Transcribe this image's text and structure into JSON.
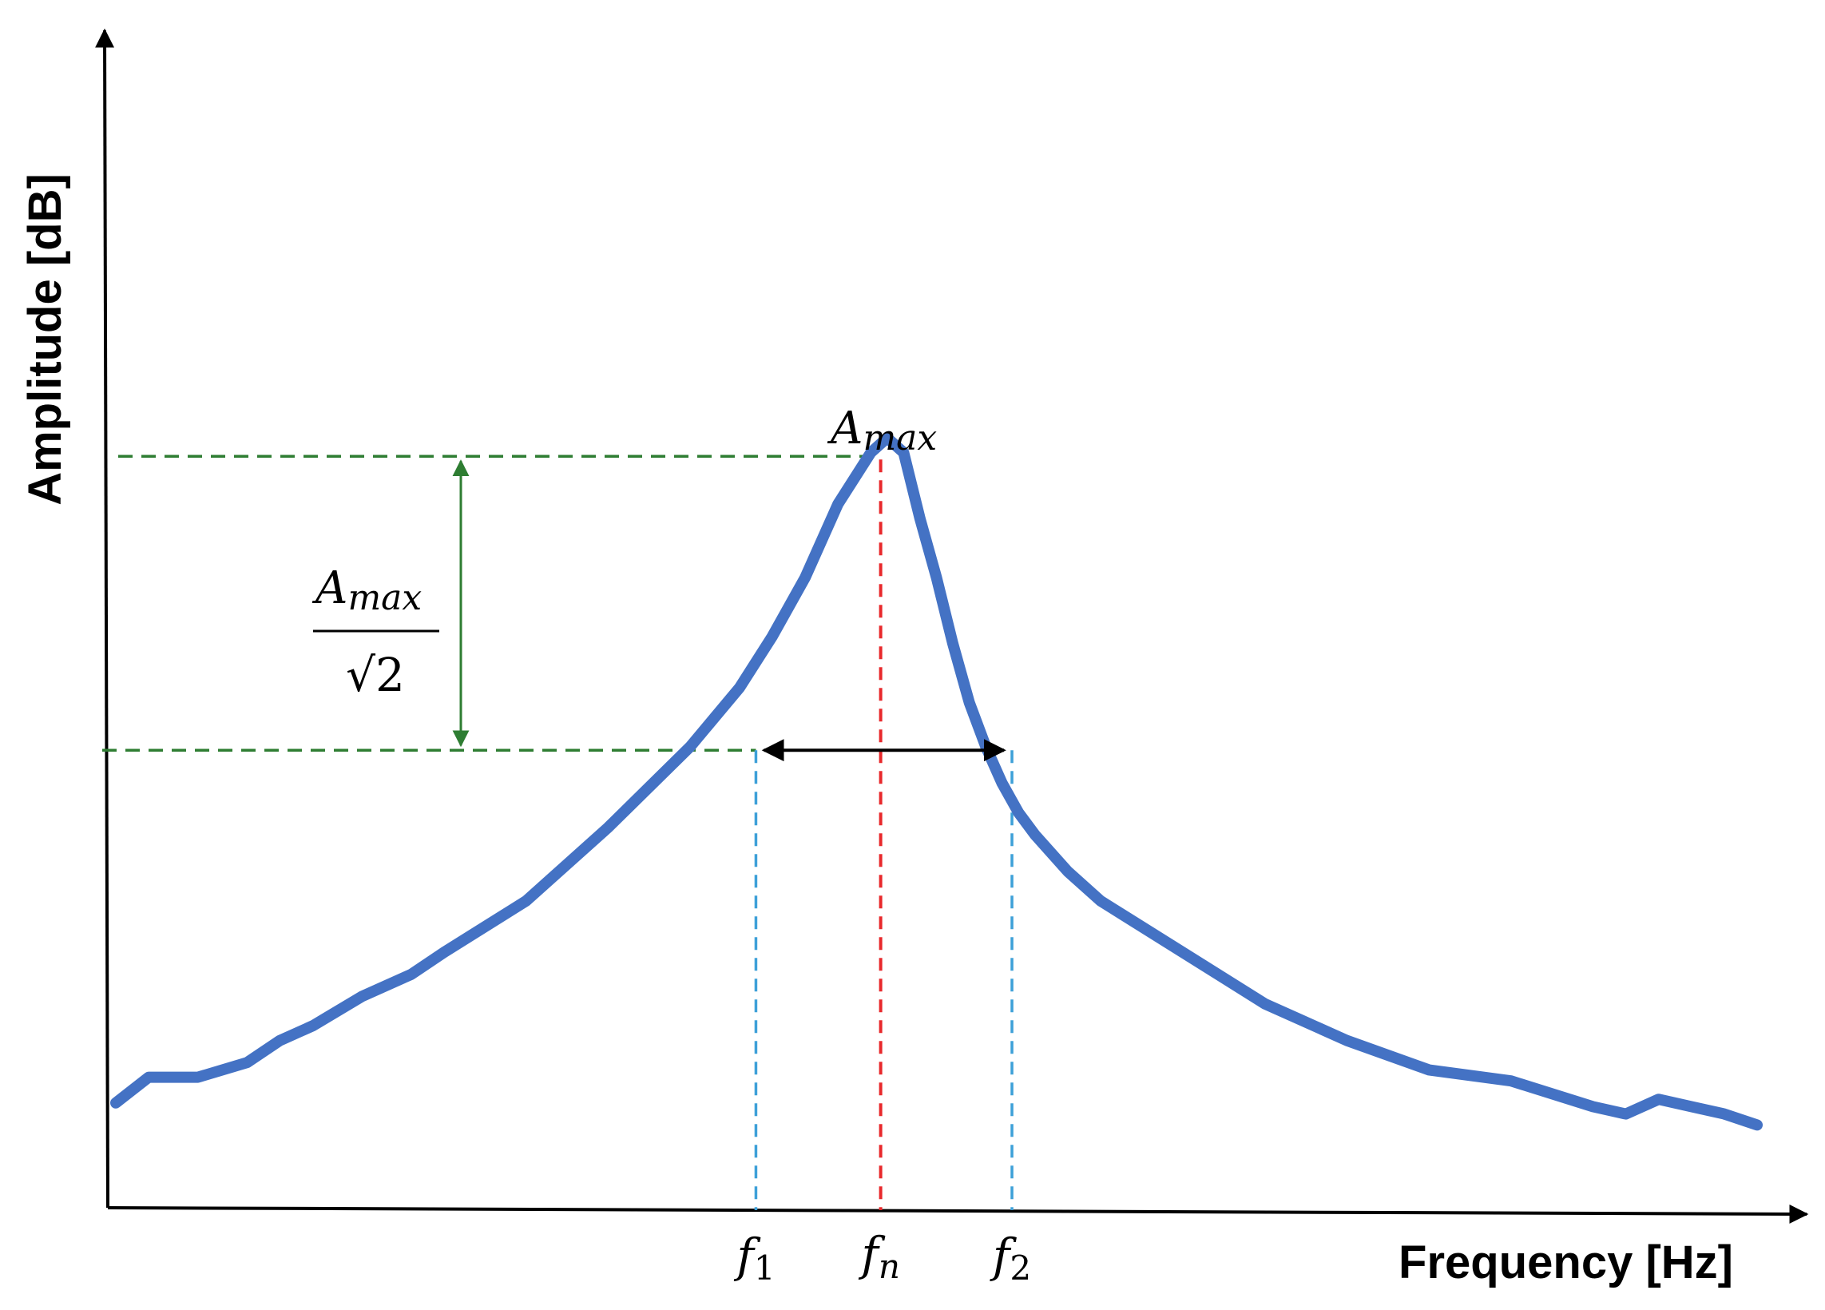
{
  "chart_data": {
    "type": "line",
    "title": "",
    "xlabel": "Frequency [Hz]",
    "ylabel": "Amplitude [dB]",
    "xlim": [
      0,
      1000
    ],
    "ylim": [
      0,
      100
    ],
    "grid": false,
    "legend": "none",
    "series": [
      {
        "color": "#4472c4",
        "x": [
          0,
          20,
          50,
          80,
          100,
          120,
          150,
          180,
          200,
          250,
          300,
          350,
          380,
          400,
          420,
          440,
          460,
          470,
          480,
          490,
          500,
          510,
          520,
          530,
          540,
          550,
          560,
          580,
          600,
          650,
          700,
          750,
          800,
          850,
          900,
          920,
          940,
          960,
          980,
          1000
        ],
        "y": [
          13.5,
          17,
          17,
          19,
          22,
          24,
          28,
          31,
          34,
          41,
          51,
          62,
          70,
          77,
          85,
          95,
          102,
          104,
          102,
          93,
          85,
          76,
          68,
          62,
          57,
          53,
          50,
          45,
          41,
          34,
          27,
          22,
          18,
          16.5,
          13,
          12,
          14,
          13,
          12,
          10.5
        ]
      }
    ],
    "annotations": {
      "peak_label": "A",
      "peak_label_sub": "max",
      "ratio_numerator": "A",
      "ratio_numerator_sub": "max",
      "ratio_denominator": "√2",
      "f1": {
        "main": "f",
        "sub": "1",
        "x": 390
      },
      "fn": {
        "main": "f",
        "sub": "n",
        "x": 466
      },
      "f2": {
        "main": "f",
        "sub": "2",
        "x": 546
      },
      "half_power_level": 61.5,
      "peak_level": 101.5
    },
    "colors": {
      "curve": "#4472c4",
      "green_dashed": "#2e7d32",
      "blue_dashed": "#3da0d8",
      "red_dashed": "#e8282b",
      "bandwidth_arrow": "#000000",
      "axes": "#000000"
    }
  }
}
